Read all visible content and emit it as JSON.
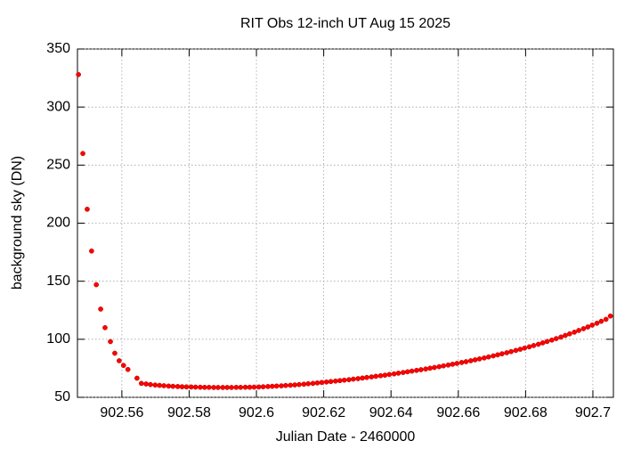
{
  "chart_data": {
    "type": "scatter",
    "title": "RIT Obs 12-inch UT Aug 15 2025",
    "xlabel": "Julian Date - 2460000",
    "ylabel": "background sky (DN)",
    "x": [
      902.5471,
      902.5484,
      902.5497,
      902.551,
      902.5524,
      902.5537,
      902.555,
      902.5566,
      902.5579,
      902.5592,
      902.5605,
      902.5618,
      902.5645,
      902.5658,
      902.5672,
      902.5685,
      902.5699,
      902.5712,
      902.5725,
      902.5739,
      902.5752,
      902.5766,
      902.5779,
      902.5792,
      902.5806,
      902.5819,
      902.5833,
      902.5846,
      902.5859,
      902.5873,
      902.5886,
      902.59,
      902.5913,
      902.5926,
      902.594,
      902.5953,
      902.5967,
      902.598,
      902.5993,
      902.6007,
      902.602,
      902.6034,
      902.6047,
      902.606,
      902.6074,
      902.6087,
      902.6101,
      902.6114,
      902.6127,
      902.6141,
      902.6154,
      902.6168,
      902.6181,
      902.6194,
      902.6208,
      902.6221,
      902.6235,
      902.6248,
      902.6261,
      902.6275,
      902.6288,
      902.6302,
      902.6315,
      902.6328,
      902.6342,
      902.6355,
      902.6369,
      902.6382,
      902.6395,
      902.6409,
      902.6422,
      902.6436,
      902.6449,
      902.6462,
      902.6476,
      902.6489,
      902.6503,
      902.6516,
      902.6529,
      902.6543,
      902.6556,
      902.657,
      902.6583,
      902.6596,
      902.661,
      902.6623,
      902.6637,
      902.665,
      902.6663,
      902.6677,
      902.669,
      902.6704,
      902.6717,
      902.673,
      902.6744,
      902.6757,
      902.6771,
      902.6784,
      902.6797,
      902.6811,
      902.6824,
      902.6838,
      902.6851,
      902.6864,
      902.6878,
      902.6891,
      902.6905,
      902.6918,
      902.6931,
      902.6945,
      902.6958,
      902.6972,
      902.6985,
      902.6998,
      902.7012,
      902.7025,
      902.7039,
      902.7052
    ],
    "values": [
      328,
      260,
      212,
      176,
      147,
      126,
      110,
      98,
      88,
      81.5,
      77.5,
      74,
      66.5,
      62,
      61.5,
      61,
      60.6,
      60.3,
      60,
      59.7,
      59.5,
      59.3,
      59.1,
      59,
      58.9,
      58.8,
      58.7,
      58.6,
      58.6,
      58.5,
      58.5,
      58.5,
      58.5,
      58.5,
      58.6,
      58.6,
      58.7,
      58.7,
      58.8,
      58.9,
      59.1,
      59.3,
      59.5,
      59.7,
      59.9,
      60.2,
      60.4,
      60.7,
      61,
      61.3,
      61.7,
      62,
      62.4,
      62.8,
      63.2,
      63.6,
      64,
      64.4,
      64.8,
      65.2,
      65.7,
      66.1,
      66.6,
      67.1,
      67.6,
      68.1,
      68.6,
      69.1,
      69.7,
      70.2,
      70.8,
      71.4,
      72,
      72.6,
      73.2,
      73.8,
      74.4,
      75.1,
      75.7,
      76.4,
      77.1,
      77.8,
      78.5,
      79.2,
      80,
      80.7,
      81.5,
      82.3,
      83.1,
      83.9,
      84.8,
      85.7,
      86.6,
      87.5,
      88.4,
      89.4,
      90.4,
      91.4,
      92.4,
      93.5,
      94.6,
      95.7,
      96.9,
      98.1,
      99.3,
      100.6,
      101.9,
      103.3,
      104.7,
      106.1,
      107.6,
      109.1,
      110.6,
      112.2,
      113.8,
      115.5,
      117.2,
      120
    ],
    "color": "#ff0000",
    "xlim": [
      902.5468,
      902.7061
    ],
    "ylim": [
      50,
      350
    ],
    "xticks": [
      902.56,
      902.58,
      902.6,
      902.62,
      902.64,
      902.66,
      902.68,
      902.7
    ],
    "yticks": [
      50,
      100,
      150,
      200,
      250,
      300,
      350
    ],
    "grid": true
  }
}
